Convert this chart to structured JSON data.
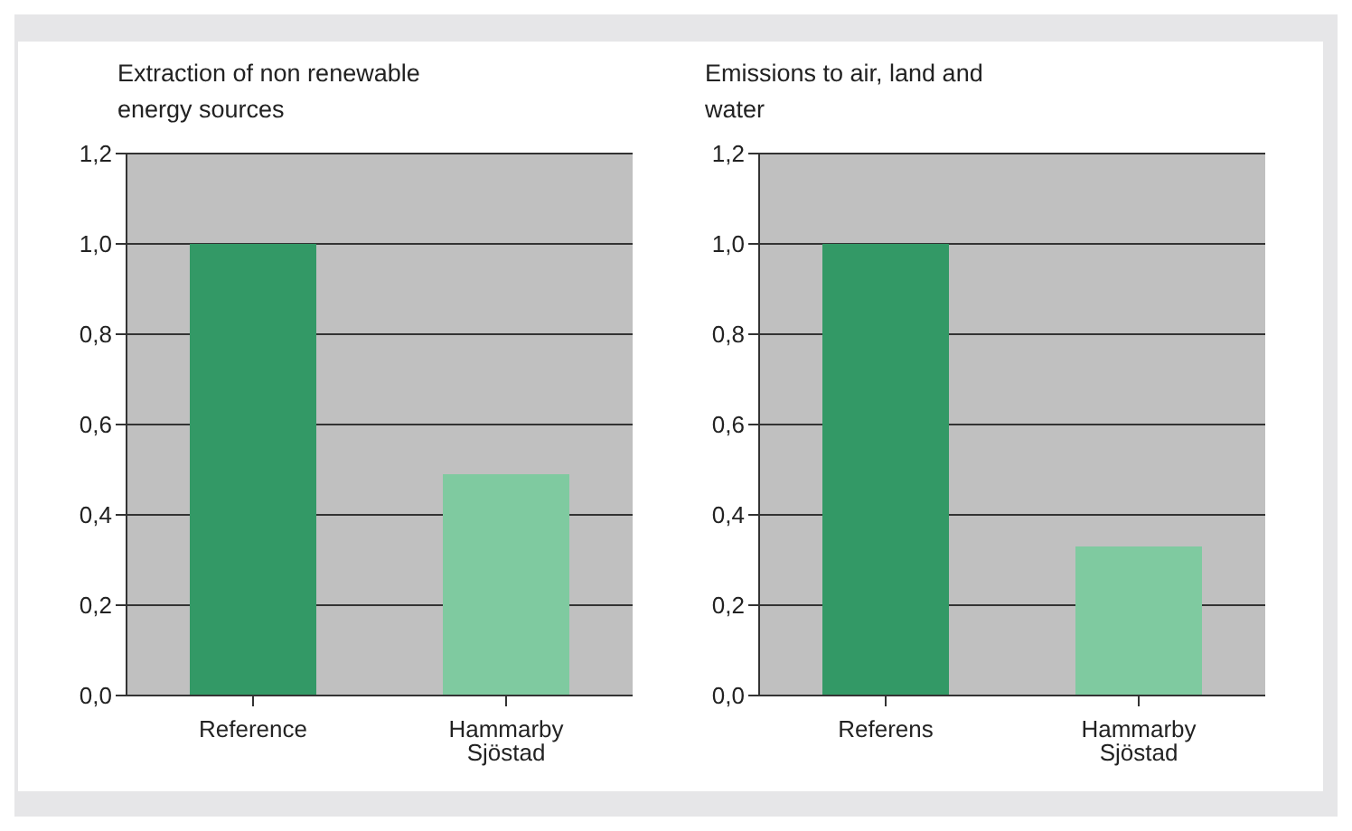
{
  "chart_data": [
    {
      "type": "bar",
      "title": "Extraction of non renewable energy sources",
      "categories": [
        "Reference",
        "Hammarby Sjöstad"
      ],
      "values": [
        1.0,
        0.49
      ],
      "colors": [
        "#339966",
        "#7fcaa0"
      ],
      "ylim": [
        0,
        1.2
      ],
      "yticks": [
        {
          "value": 0,
          "label": "0,0"
        },
        {
          "value": 0.2,
          "label": "0,2"
        },
        {
          "value": 0.4,
          "label": "0,4"
        },
        {
          "value": 0.6,
          "label": "0,6"
        },
        {
          "value": 0.8,
          "label": "0,8"
        },
        {
          "value": 1.0,
          "label": "1,0"
        },
        {
          "value": 1.2,
          "label": "1,2"
        }
      ],
      "grid": "y",
      "legend": false
    },
    {
      "type": "bar",
      "title": "Emissions to air, land and water",
      "categories": [
        "Referens",
        "Hammarby Sjöstad"
      ],
      "values": [
        1.0,
        0.33
      ],
      "colors": [
        "#339966",
        "#7fcaa0"
      ],
      "ylim": [
        0,
        1.2
      ],
      "yticks": [
        {
          "value": 0,
          "label": "0,0"
        },
        {
          "value": 0.2,
          "label": "0,2"
        },
        {
          "value": 0.4,
          "label": "0,4"
        },
        {
          "value": 0.6,
          "label": "0,6"
        },
        {
          "value": 0.8,
          "label": "0,8"
        },
        {
          "value": 1.0,
          "label": "1,0"
        },
        {
          "value": 1.2,
          "label": "1,2"
        }
      ],
      "grid": "y",
      "legend": false
    }
  ]
}
